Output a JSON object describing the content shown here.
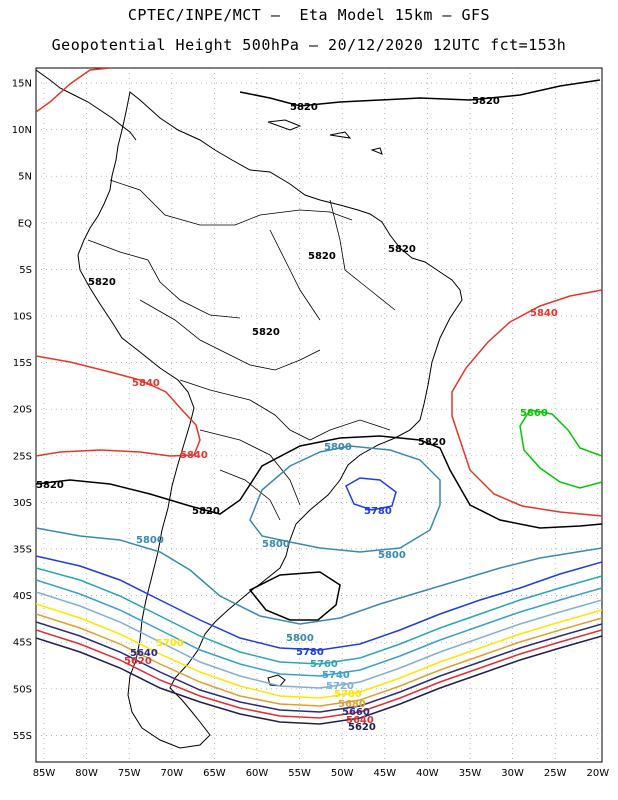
{
  "header": {
    "line1": "CPTEC/INPE/MCT —  Eta Model 15km — GFS",
    "line2": "Geopotential Height 500hPa — 20/12/2020 12UTC fct=153h"
  },
  "axes": {
    "lat_labels": [
      "15N",
      "10N",
      "5N",
      "EQ",
      "5S",
      "10S",
      "15S",
      "20S",
      "25S",
      "30S",
      "35S",
      "40S",
      "45S",
      "50S",
      "55S"
    ],
    "lon_labels": [
      "85W",
      "80W",
      "75W",
      "70W",
      "65W",
      "60W",
      "55W",
      "50W",
      "45W",
      "40W",
      "35W",
      "30W",
      "25W",
      "20W"
    ]
  },
  "colors": {
    "c5820": "#000000",
    "c5840": "#e8352a",
    "c5860": "#00c800",
    "c5800": "#3a8ab0",
    "c5780": "#1f3ee0",
    "c5760": "#2aa7b0",
    "c5740": "#3aa0d0",
    "c5720": "#80b0d8",
    "c5700": "#ffe600",
    "c5680": "#e0a030",
    "c5660": "#2a2a80",
    "c5640": "#e03030",
    "c5620": "#202050",
    "coast": "#000000",
    "grid": "#999999"
  },
  "contour_labels": [
    {
      "text": "5820"
    },
    {
      "text": "5820"
    },
    {
      "text": "5820"
    },
    {
      "text": "5820"
    },
    {
      "text": "5820"
    },
    {
      "text": "5820"
    },
    {
      "text": "5820"
    },
    {
      "text": "5820"
    },
    {
      "text": "5820"
    },
    {
      "text": "5840"
    },
    {
      "text": "5840"
    },
    {
      "text": "5840"
    },
    {
      "text": "5860"
    },
    {
      "text": "5800"
    },
    {
      "text": "5800"
    },
    {
      "text": "5800"
    },
    {
      "text": "5800"
    },
    {
      "text": "5780"
    },
    {
      "text": "5800"
    },
    {
      "text": "5780"
    },
    {
      "text": "5760"
    },
    {
      "text": "5740"
    },
    {
      "text": "5720"
    },
    {
      "text": "5700"
    },
    {
      "text": "5680"
    },
    {
      "text": "5660"
    },
    {
      "text": "5640"
    },
    {
      "text": "5700"
    },
    {
      "text": "5640"
    },
    {
      "text": "5620"
    },
    {
      "text": "5620"
    }
  ]
}
